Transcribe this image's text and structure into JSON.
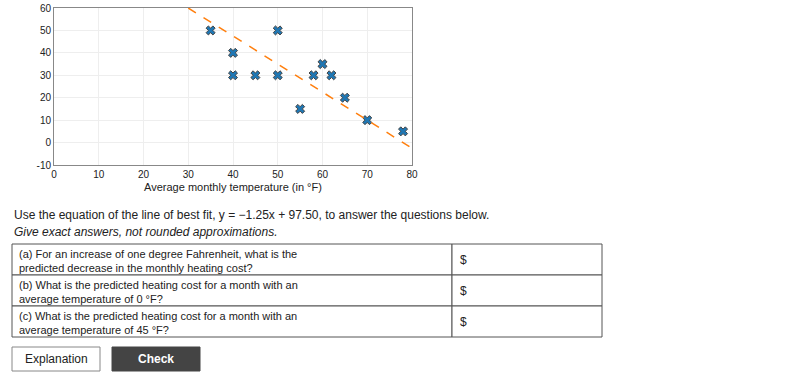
{
  "chart_data": {
    "type": "scatter",
    "xlabel": "Average monthly temperature (in °F)",
    "series": [
      {
        "type": "scatter",
        "marker": "x",
        "x": [
          35,
          40,
          40,
          45,
          50,
          50,
          55,
          58,
          60,
          62,
          65,
          70,
          78
        ],
        "values": [
          50,
          40,
          30,
          30,
          50,
          30,
          15,
          30,
          35,
          30,
          20,
          10,
          5
        ]
      },
      {
        "type": "line",
        "line_style": "dashed",
        "x": [
          30,
          80
        ],
        "values": [
          60,
          -2.5
        ]
      }
    ],
    "xlim": [
      0,
      80
    ],
    "xticks": [
      0,
      10,
      20,
      30,
      40,
      50,
      60,
      70,
      80
    ],
    "ylim": [
      -10,
      60
    ],
    "yticks": [
      -10,
      0,
      10,
      20,
      30,
      40,
      50,
      60
    ],
    "grid": true,
    "annotations": [
      "Use the equation of the line of best fit, y = −1.25x + 97.50, to answer the questions below.",
      "Give exact answers, not rounded approximations.",
      "(a) For an increase of one degree Fahrenheit, what is the\npredicted decrease in the monthly heating cost?",
      "$",
      "(b) What is the predicted heating cost for a month with an\naverage temperature of 0 °F?",
      "$",
      "(c) What is the predicted heating cost for a month with an\naverage temperature of 45 °F?",
      "$",
      "Explanation",
      "Check"
    ]
  }
}
